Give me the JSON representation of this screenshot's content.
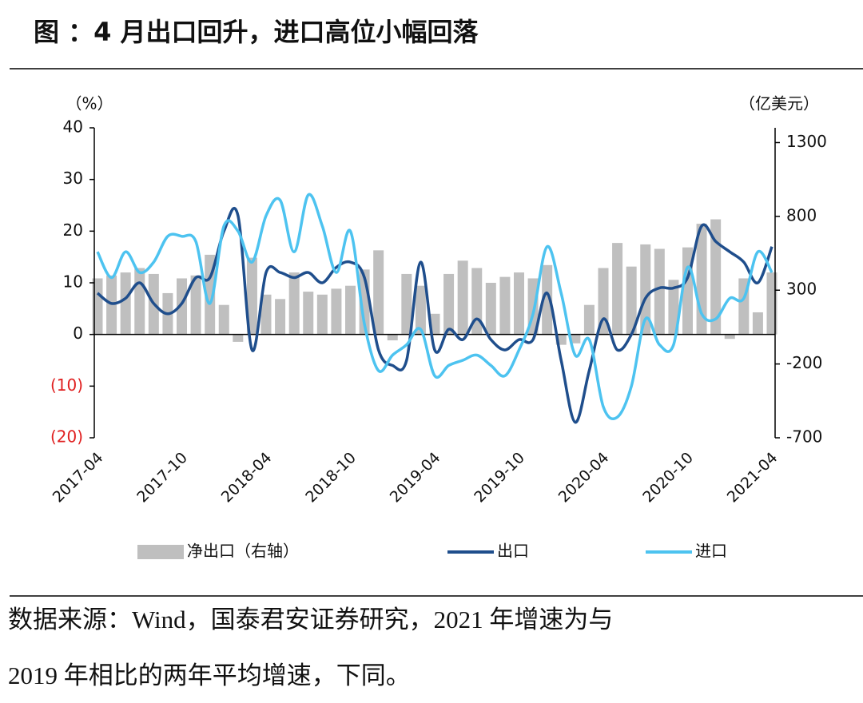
{
  "chart_data": {
    "type": "bar-line",
    "title": "图 ：4 月出口回升，进口高位小幅回落",
    "ylabel": "（%）",
    "y2label": "（亿美元）",
    "categories": [
      "2017-04",
      null,
      null,
      null,
      null,
      null,
      "2017-10",
      null,
      null,
      null,
      null,
      null,
      "2018-04",
      null,
      null,
      null,
      null,
      null,
      "2018-10",
      null,
      null,
      null,
      null,
      null,
      "2019-04",
      null,
      null,
      null,
      null,
      null,
      "2019-10",
      null,
      null,
      null,
      null,
      null,
      "2020-04",
      null,
      null,
      null,
      null,
      null,
      "2020-10",
      null,
      null,
      null,
      null,
      null,
      "2021-04"
    ],
    "ylim": [
      -20,
      40
    ],
    "yticks": [
      {
        "value": -20,
        "label": "(20)"
      },
      {
        "value": -10,
        "label": "(10)"
      },
      0,
      10,
      20,
      30,
      40
    ],
    "negative_tick_color": "#e02020",
    "y2lim": [
      -700,
      1400
    ],
    "y2ticks": [
      -700,
      -200,
      300,
      800,
      1300
    ],
    "series": [
      {
        "name": "净出口（右轴）",
        "type": "bar",
        "axis": "y2",
        "color": "#bfbfbf",
        "values": [
          380,
          400,
          420,
          450,
          410,
          280,
          380,
          400,
          540,
          200,
          -50,
          520,
          270,
          240,
          420,
          290,
          270,
          310,
          330,
          440,
          570,
          -40,
          410,
          330,
          140,
          410,
          500,
          450,
          350,
          390,
          420,
          380,
          470,
          -70,
          -60,
          200,
          450,
          620,
          460,
          610,
          580,
          370,
          590,
          750,
          780,
          -30,
          380,
          150,
          420
        ]
      },
      {
        "name": "出口",
        "type": "line",
        "color": "#1f4e8c",
        "values": [
          8,
          6,
          7,
          10,
          6,
          4,
          6,
          11,
          11,
          20,
          23,
          -3,
          12,
          12,
          11,
          12,
          10,
          13,
          14,
          11,
          -3,
          -6,
          -5,
          14,
          -3,
          1,
          -1,
          3,
          -1,
          -3,
          -1,
          -1,
          8,
          -5,
          -17,
          -7,
          3,
          -3,
          0,
          7,
          9,
          9,
          11,
          21,
          18,
          16,
          14,
          10,
          17
        ]
      },
      {
        "name": "进口",
        "type": "line",
        "color": "#4dc3f0",
        "values": [
          16,
          11,
          16,
          12,
          14,
          19,
          19,
          18,
          6,
          21,
          20,
          14,
          23,
          26,
          16,
          27,
          21,
          12,
          20,
          2,
          -7,
          -4,
          -2,
          1,
          -8,
          -6,
          -5,
          -4,
          -6,
          -8,
          -3,
          4,
          17,
          8,
          -4,
          -1,
          -14,
          -16,
          -10,
          3,
          -2,
          -2,
          13,
          4,
          3,
          7,
          7,
          16,
          12
        ]
      }
    ],
    "source": [
      "数据来源：Wind，国泰君安证券研究，2021 年增速为与",
      "2019 年相比的两年平均增速，下同。"
    ]
  }
}
